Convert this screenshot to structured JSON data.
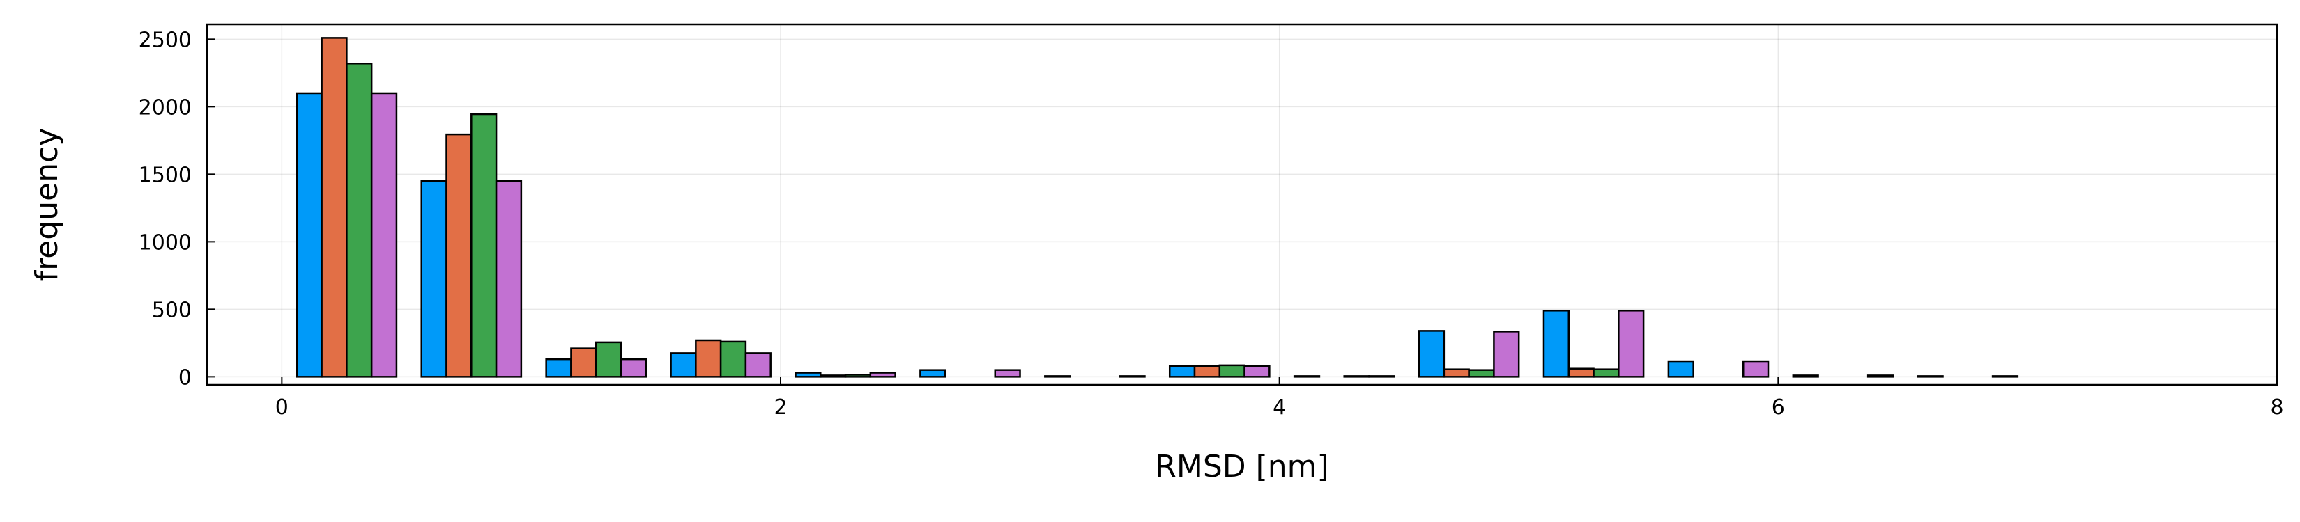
{
  "chart_data": {
    "type": "bar",
    "title": "",
    "xlabel": "RMSD [nm]",
    "ylabel": "frequency",
    "xlim": [
      -0.3,
      8.0
    ],
    "ylim": [
      -60,
      2610
    ],
    "xticks": [
      0,
      2,
      4,
      6,
      8
    ],
    "yticks": [
      0,
      500,
      1000,
      1500,
      2000,
      2500
    ],
    "grid": true,
    "legend": "none",
    "bin_width": 0.5,
    "bin_starts": [
      0,
      0.5,
      1.0,
      1.5,
      2.0,
      2.5,
      3.0,
      3.5,
      4.0,
      4.5,
      5.0,
      5.5,
      6.0,
      6.5
    ],
    "series": [
      {
        "color": "#009af9",
        "values": [
          2100,
          1450,
          130,
          175,
          30,
          50,
          5,
          80,
          5,
          340,
          490,
          115,
          10,
          5
        ]
      },
      {
        "color": "#e26f46",
        "values": [
          2510,
          1795,
          210,
          270,
          10,
          0,
          0,
          80,
          0,
          55,
          60,
          0,
          0,
          0
        ]
      },
      {
        "color": "#3da44d",
        "values": [
          2320,
          1945,
          255,
          260,
          15,
          0,
          0,
          85,
          5,
          50,
          55,
          0,
          0,
          0
        ]
      },
      {
        "color": "#c271d2",
        "values": [
          2100,
          1450,
          130,
          175,
          30,
          50,
          5,
          80,
          5,
          335,
          490,
          115,
          10,
          5
        ]
      }
    ]
  }
}
